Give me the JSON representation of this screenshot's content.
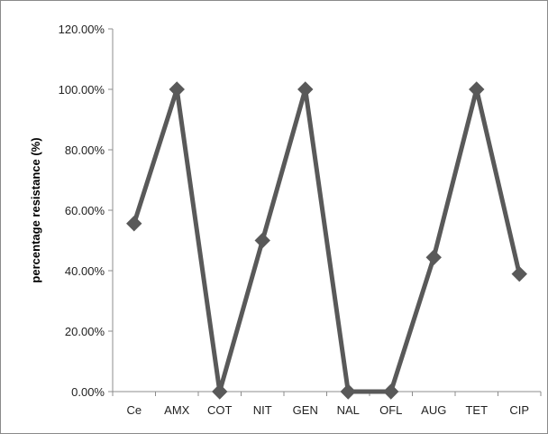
{
  "chart_data": {
    "type": "line",
    "title": "",
    "xlabel": "",
    "ylabel": "percentage resistance (%)",
    "categories": [
      "Ce",
      "AMX",
      "COT",
      "NIT",
      "GEN",
      "NAL",
      "OFL",
      "AUG",
      "TET",
      "CIP"
    ],
    "series": [
      {
        "values": [
          55.6,
          100.0,
          0.0,
          50.0,
          100.0,
          0.0,
          0.0,
          44.4,
          100.0,
          38.9
        ],
        "color": "#595959",
        "marker": "diamond"
      }
    ],
    "ylim": [
      0,
      120
    ],
    "yticks": [
      0,
      20,
      40,
      60,
      80,
      100,
      120
    ],
    "ytick_labels": [
      "0.00%",
      "20.00%",
      "40.00%",
      "60.00%",
      "80.00%",
      "100.00%",
      "120.00%"
    ],
    "grid": false,
    "legend": "none"
  }
}
